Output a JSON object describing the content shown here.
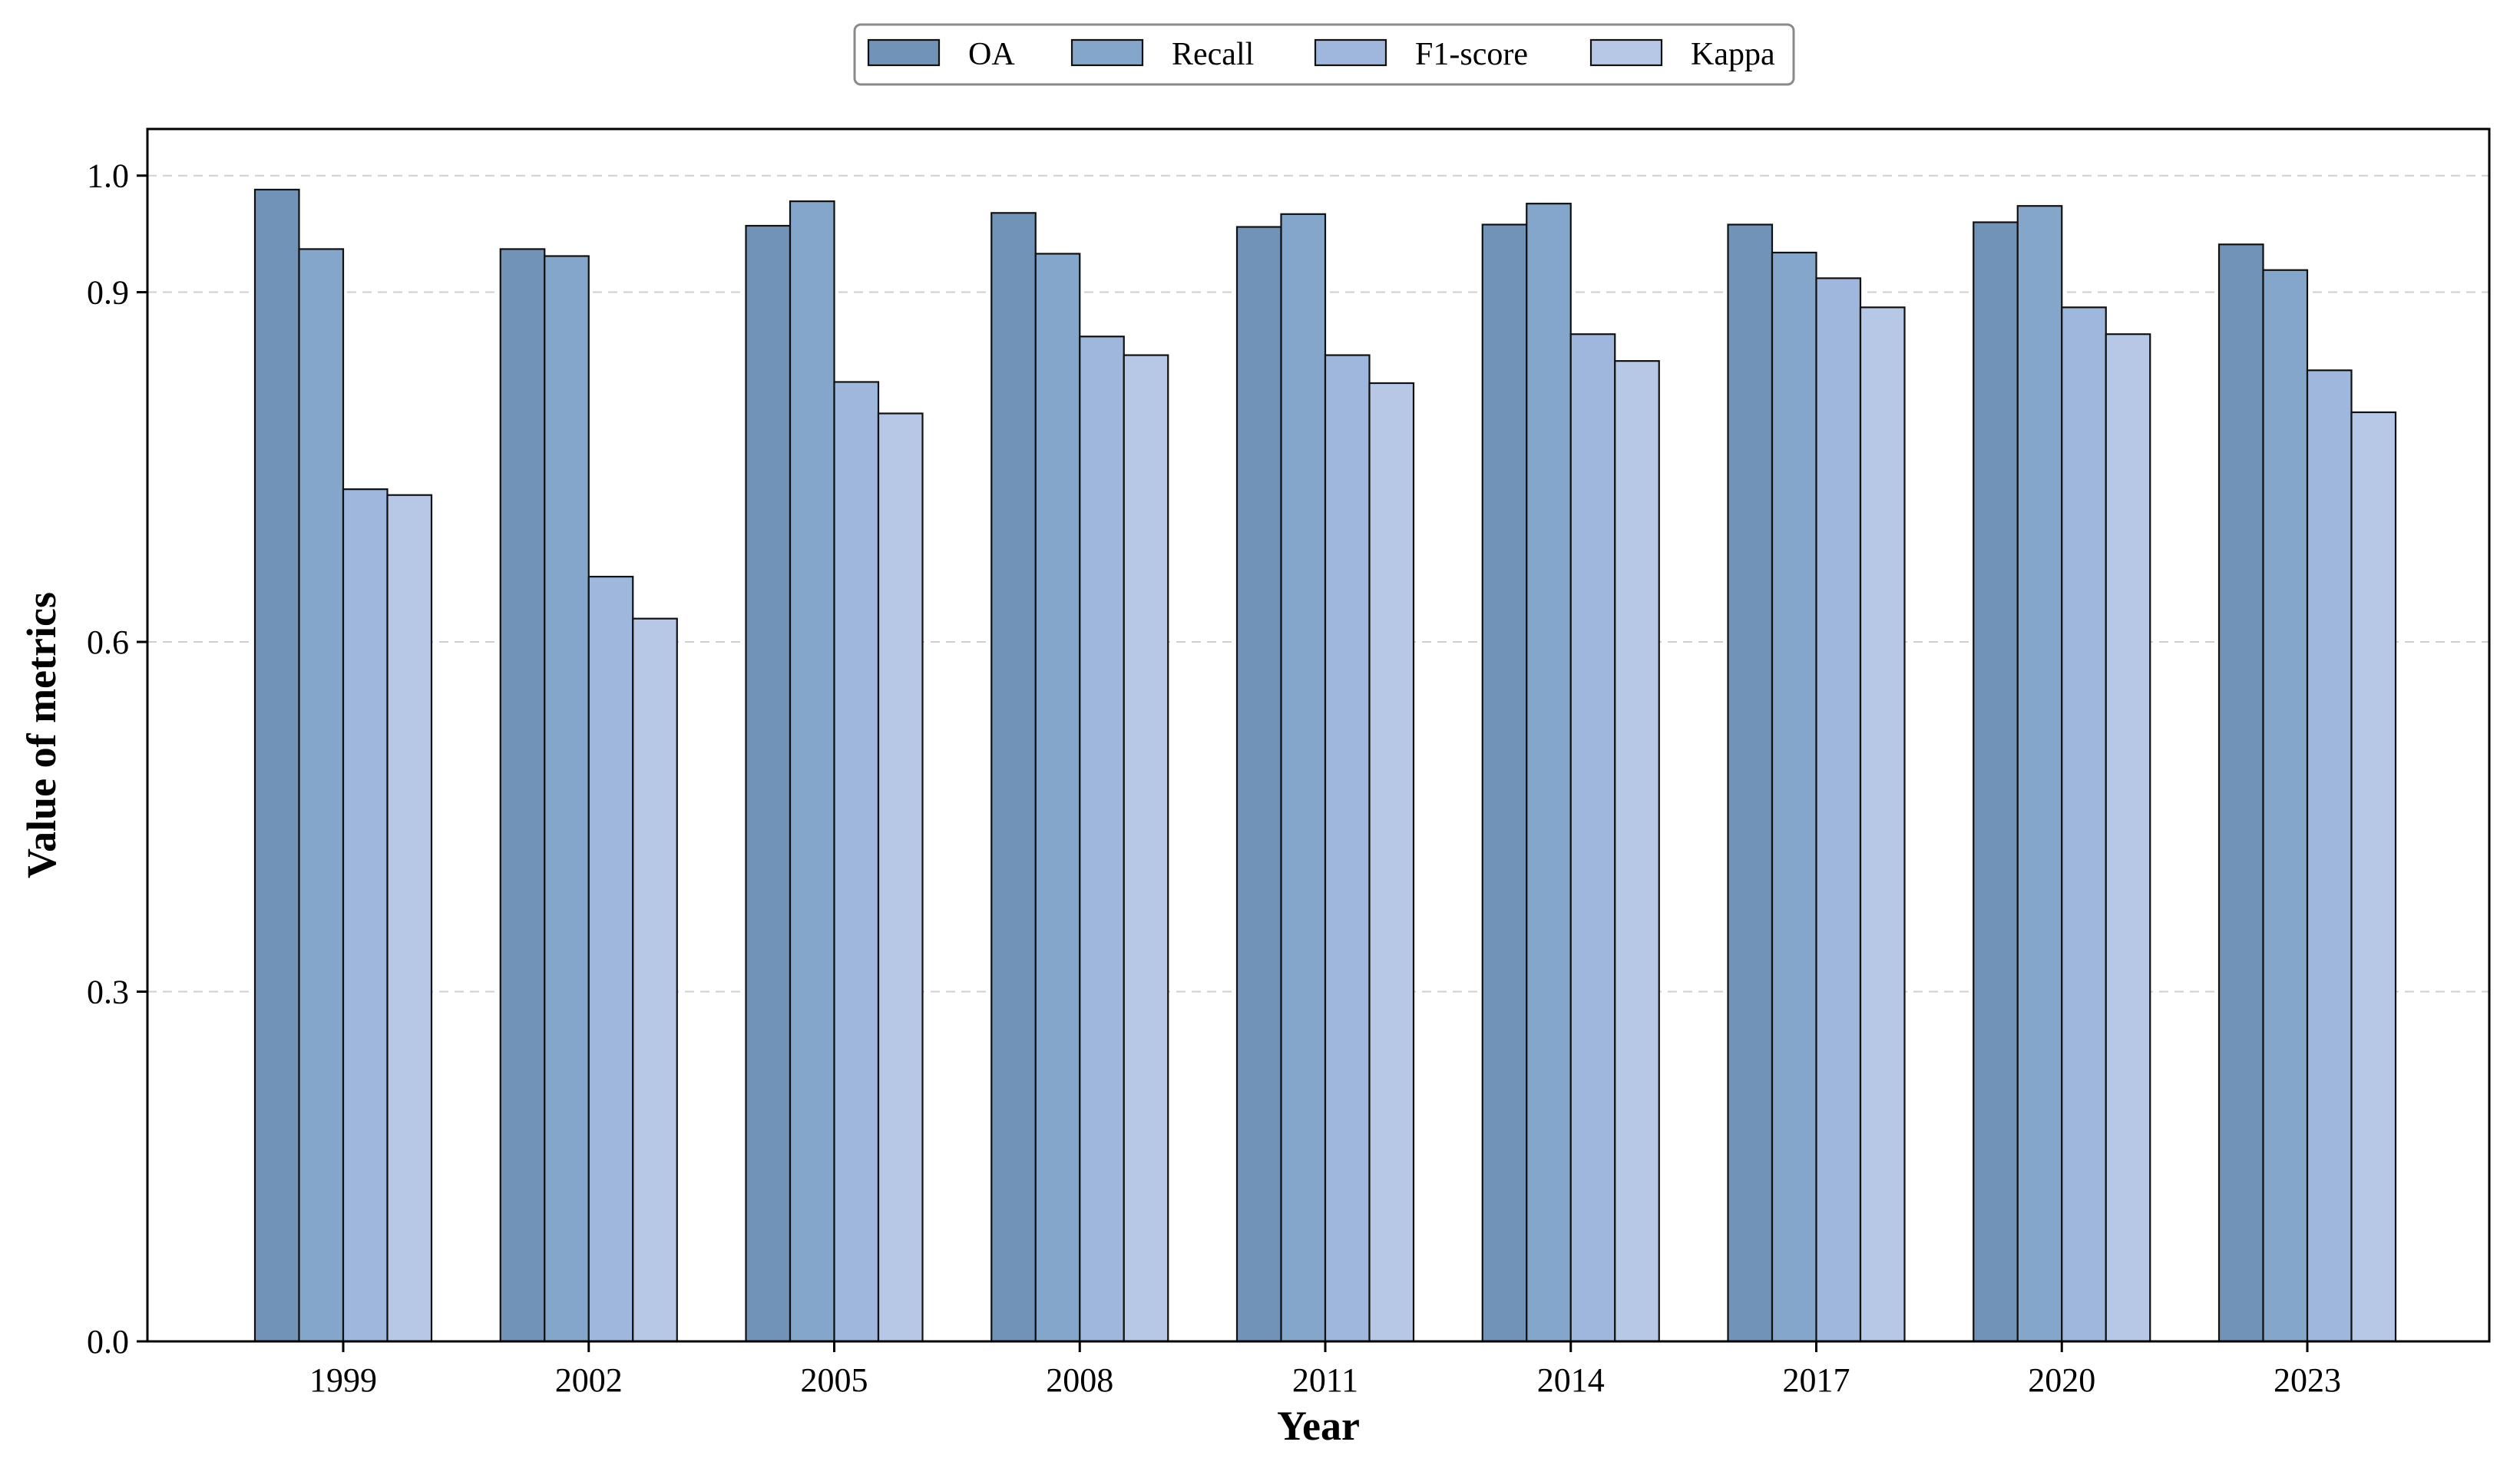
{
  "chart_data": {
    "type": "bar",
    "title": "",
    "xlabel": "Year",
    "ylabel": "Value of metrics",
    "categories": [
      "1999",
      "2002",
      "2005",
      "2008",
      "2011",
      "2014",
      "2017",
      "2020",
      "2023"
    ],
    "ylim": [
      0,
      1.04
    ],
    "yticks": [
      "0.0",
      "0.3",
      "0.6",
      "0.9",
      "1.0"
    ],
    "grid": "horizontal dashed",
    "legend_position": "top-center",
    "series": [
      {
        "name": "OA",
        "color": "#7193b8",
        "values": [
          0.988,
          0.937,
          0.957,
          0.968,
          0.956,
          0.958,
          0.958,
          0.96,
          0.941
        ]
      },
      {
        "name": "Recall",
        "color": "#84a6cb",
        "values": [
          0.937,
          0.931,
          0.978,
          0.933,
          0.967,
          0.976,
          0.934,
          0.974,
          0.919
        ]
      },
      {
        "name": "F1-score",
        "color": "#9fb7dc",
        "values": [
          0.731,
          0.656,
          0.823,
          0.862,
          0.846,
          0.864,
          0.912,
          0.887,
          0.833
        ]
      },
      {
        "name": "Kappa",
        "color": "#b7c8e7",
        "values": [
          0.726,
          0.62,
          0.796,
          0.846,
          0.822,
          0.841,
          0.887,
          0.864,
          0.797
        ]
      }
    ]
  }
}
